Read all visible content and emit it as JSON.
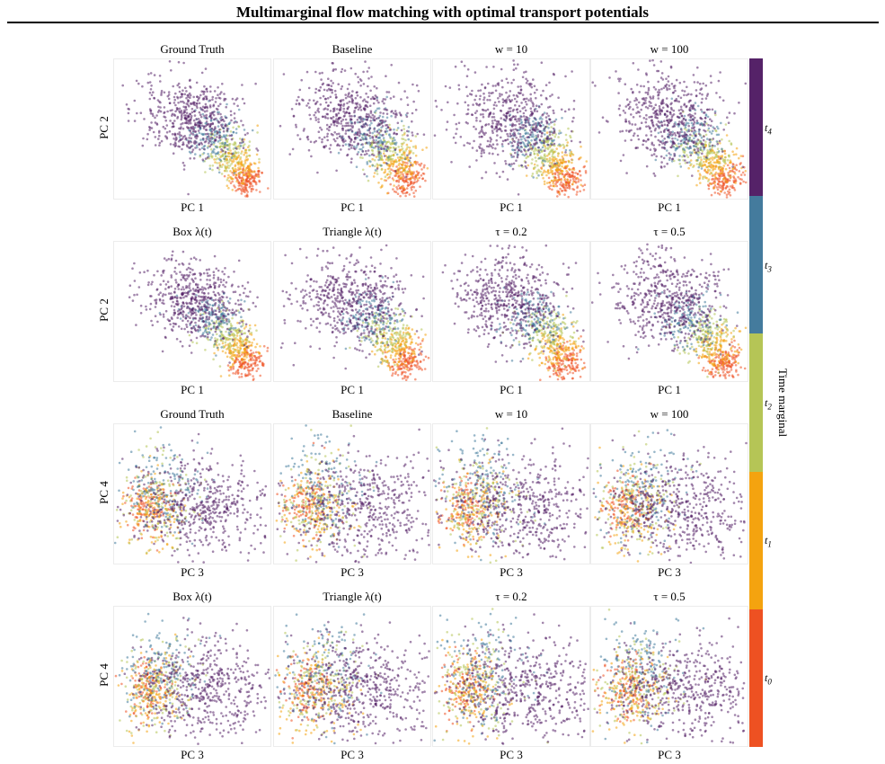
{
  "figure": {
    "title": "Multimarginal flow matching with optimal transport potentials"
  },
  "colors": {
    "t0": "#ee5122",
    "t1": "#f4a30f",
    "t2": "#b5c556",
    "t3": "#447b9d",
    "t4": "#552268"
  },
  "colorbar": {
    "label": "Time marginal",
    "ticks": [
      {
        "base": "t",
        "sub": "4"
      },
      {
        "base": "t",
        "sub": "3"
      },
      {
        "base": "t",
        "sub": "2"
      },
      {
        "base": "t",
        "sub": "1"
      },
      {
        "base": "t",
        "sub": "0"
      }
    ]
  },
  "chart_data": {
    "type": "scatter",
    "series": [
      {
        "name": "t0"
      },
      {
        "name": "t1"
      },
      {
        "name": "t2"
      },
      {
        "name": "t3"
      },
      {
        "name": "t4"
      }
    ],
    "rows": [
      {
        "ylabel": "PC 2",
        "xlabel": "PC 1",
        "projection": "pc12",
        "panels": [
          "Ground Truth",
          "Baseline",
          "w = 10",
          "w = 100"
        ]
      },
      {
        "ylabel": "PC 2",
        "xlabel": "PC 1",
        "projection": "pc12",
        "panels": [
          "Box λ(t)",
          "Triangle λ(t)",
          "τ = 0.2",
          "τ = 0.5"
        ]
      },
      {
        "ylabel": "PC 4",
        "xlabel": "PC 3",
        "projection": "pc34",
        "panels": [
          "Ground Truth",
          "Baseline",
          "w = 10",
          "w = 100"
        ]
      },
      {
        "ylabel": "PC 4",
        "xlabel": "PC 3",
        "projection": "pc34",
        "panels": [
          "Box λ(t)",
          "Triangle λ(t)",
          "τ = 0.2",
          "τ = 0.5"
        ]
      }
    ]
  }
}
